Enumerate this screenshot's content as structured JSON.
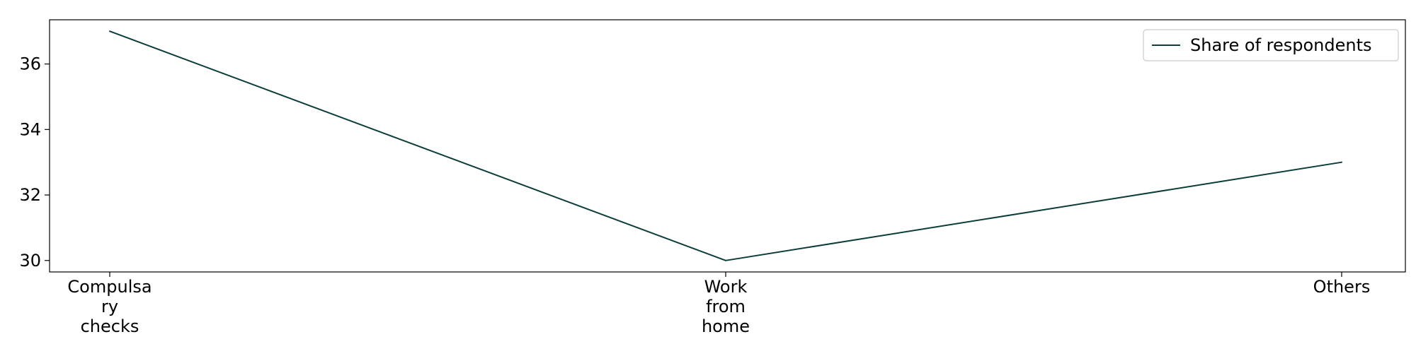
{
  "chart_data": {
    "type": "line",
    "categories": [
      [
        "Compulsa",
        "ry",
        "checks"
      ],
      [
        "Work",
        "from",
        "home"
      ],
      [
        "Others"
      ]
    ],
    "series": [
      {
        "name": "Share of respondents",
        "values": [
          37,
          30,
          33
        ],
        "color": "#0b3d3a"
      }
    ],
    "yticks": [
      "30",
      "32",
      "34",
      "36"
    ],
    "ylim": [
      29.65,
      37.35
    ],
    "grid": false,
    "legend_position": "top-right"
  }
}
